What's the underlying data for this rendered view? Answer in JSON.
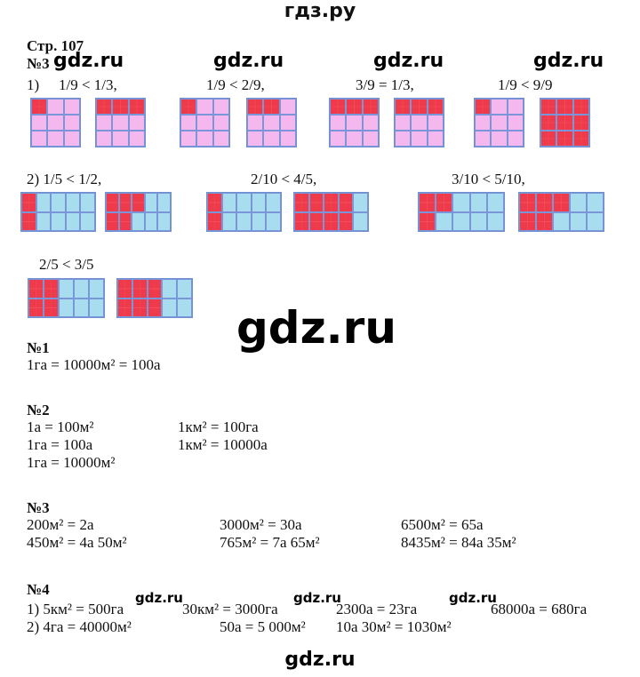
{
  "header": "гдз.ру",
  "page_label": "Стр. 107",
  "watermark": "gdz.ru",
  "task3_title": "№3",
  "part1": {
    "label": "1)",
    "comparisons": [
      "1/9 < 1/3,",
      "1/9 < 2/9,",
      "3/9 = 1/3,",
      "1/9 < 9/9"
    ],
    "grids": [
      [
        "100",
        "000",
        "000"
      ],
      [
        "111",
        "000",
        "000"
      ],
      [
        "100",
        "000",
        "000"
      ],
      [
        "110",
        "000",
        "000"
      ],
      [
        "111",
        "000",
        "000"
      ],
      [
        "111",
        "000",
        "000"
      ],
      [
        "100",
        "000",
        "000"
      ],
      [
        "111",
        "111",
        "111"
      ]
    ]
  },
  "part2": {
    "comparisons": [
      "2) 1/5 < 1/2,",
      "2/10 < 4/5,",
      "3/10 < 5/10,",
      "2/5 < 3/5"
    ],
    "grids": [
      [
        "10000",
        "10000"
      ],
      [
        "11100",
        "11000"
      ],
      [
        "10000",
        "10000"
      ],
      [
        "11110",
        "11110"
      ],
      [
        "11000",
        "10000"
      ],
      [
        "11100",
        "11000"
      ],
      [
        "11000",
        "11000"
      ],
      [
        "11100",
        "11100"
      ]
    ]
  },
  "n1": {
    "title": "№1",
    "lines": [
      "1га = 10000м² = 100а"
    ]
  },
  "n2": {
    "title": "№2",
    "col1": [
      "1а = 100м²",
      "1га = 100а",
      "1га = 10000м²"
    ],
    "col2": [
      "1км² = 100га",
      "1км² = 10000а"
    ]
  },
  "n3": {
    "title": "№3",
    "row1": [
      "200м² = 2а",
      "3000м² = 30а",
      "6500м² = 65а"
    ],
    "row2": [
      "450м² = 4а 50м²",
      "765м² = 7а 65м²",
      "8435м² = 84а 35м²"
    ]
  },
  "n4": {
    "title": "№4",
    "row1": [
      "1) 5км² = 500га",
      "30км² = 3000га",
      "2300а = 23га",
      "68000а = 680га"
    ],
    "row2": [
      "2) 4га = 40000м²",
      "50а = 5 000м²",
      "10а 30м² = 1030м²"
    ]
  }
}
